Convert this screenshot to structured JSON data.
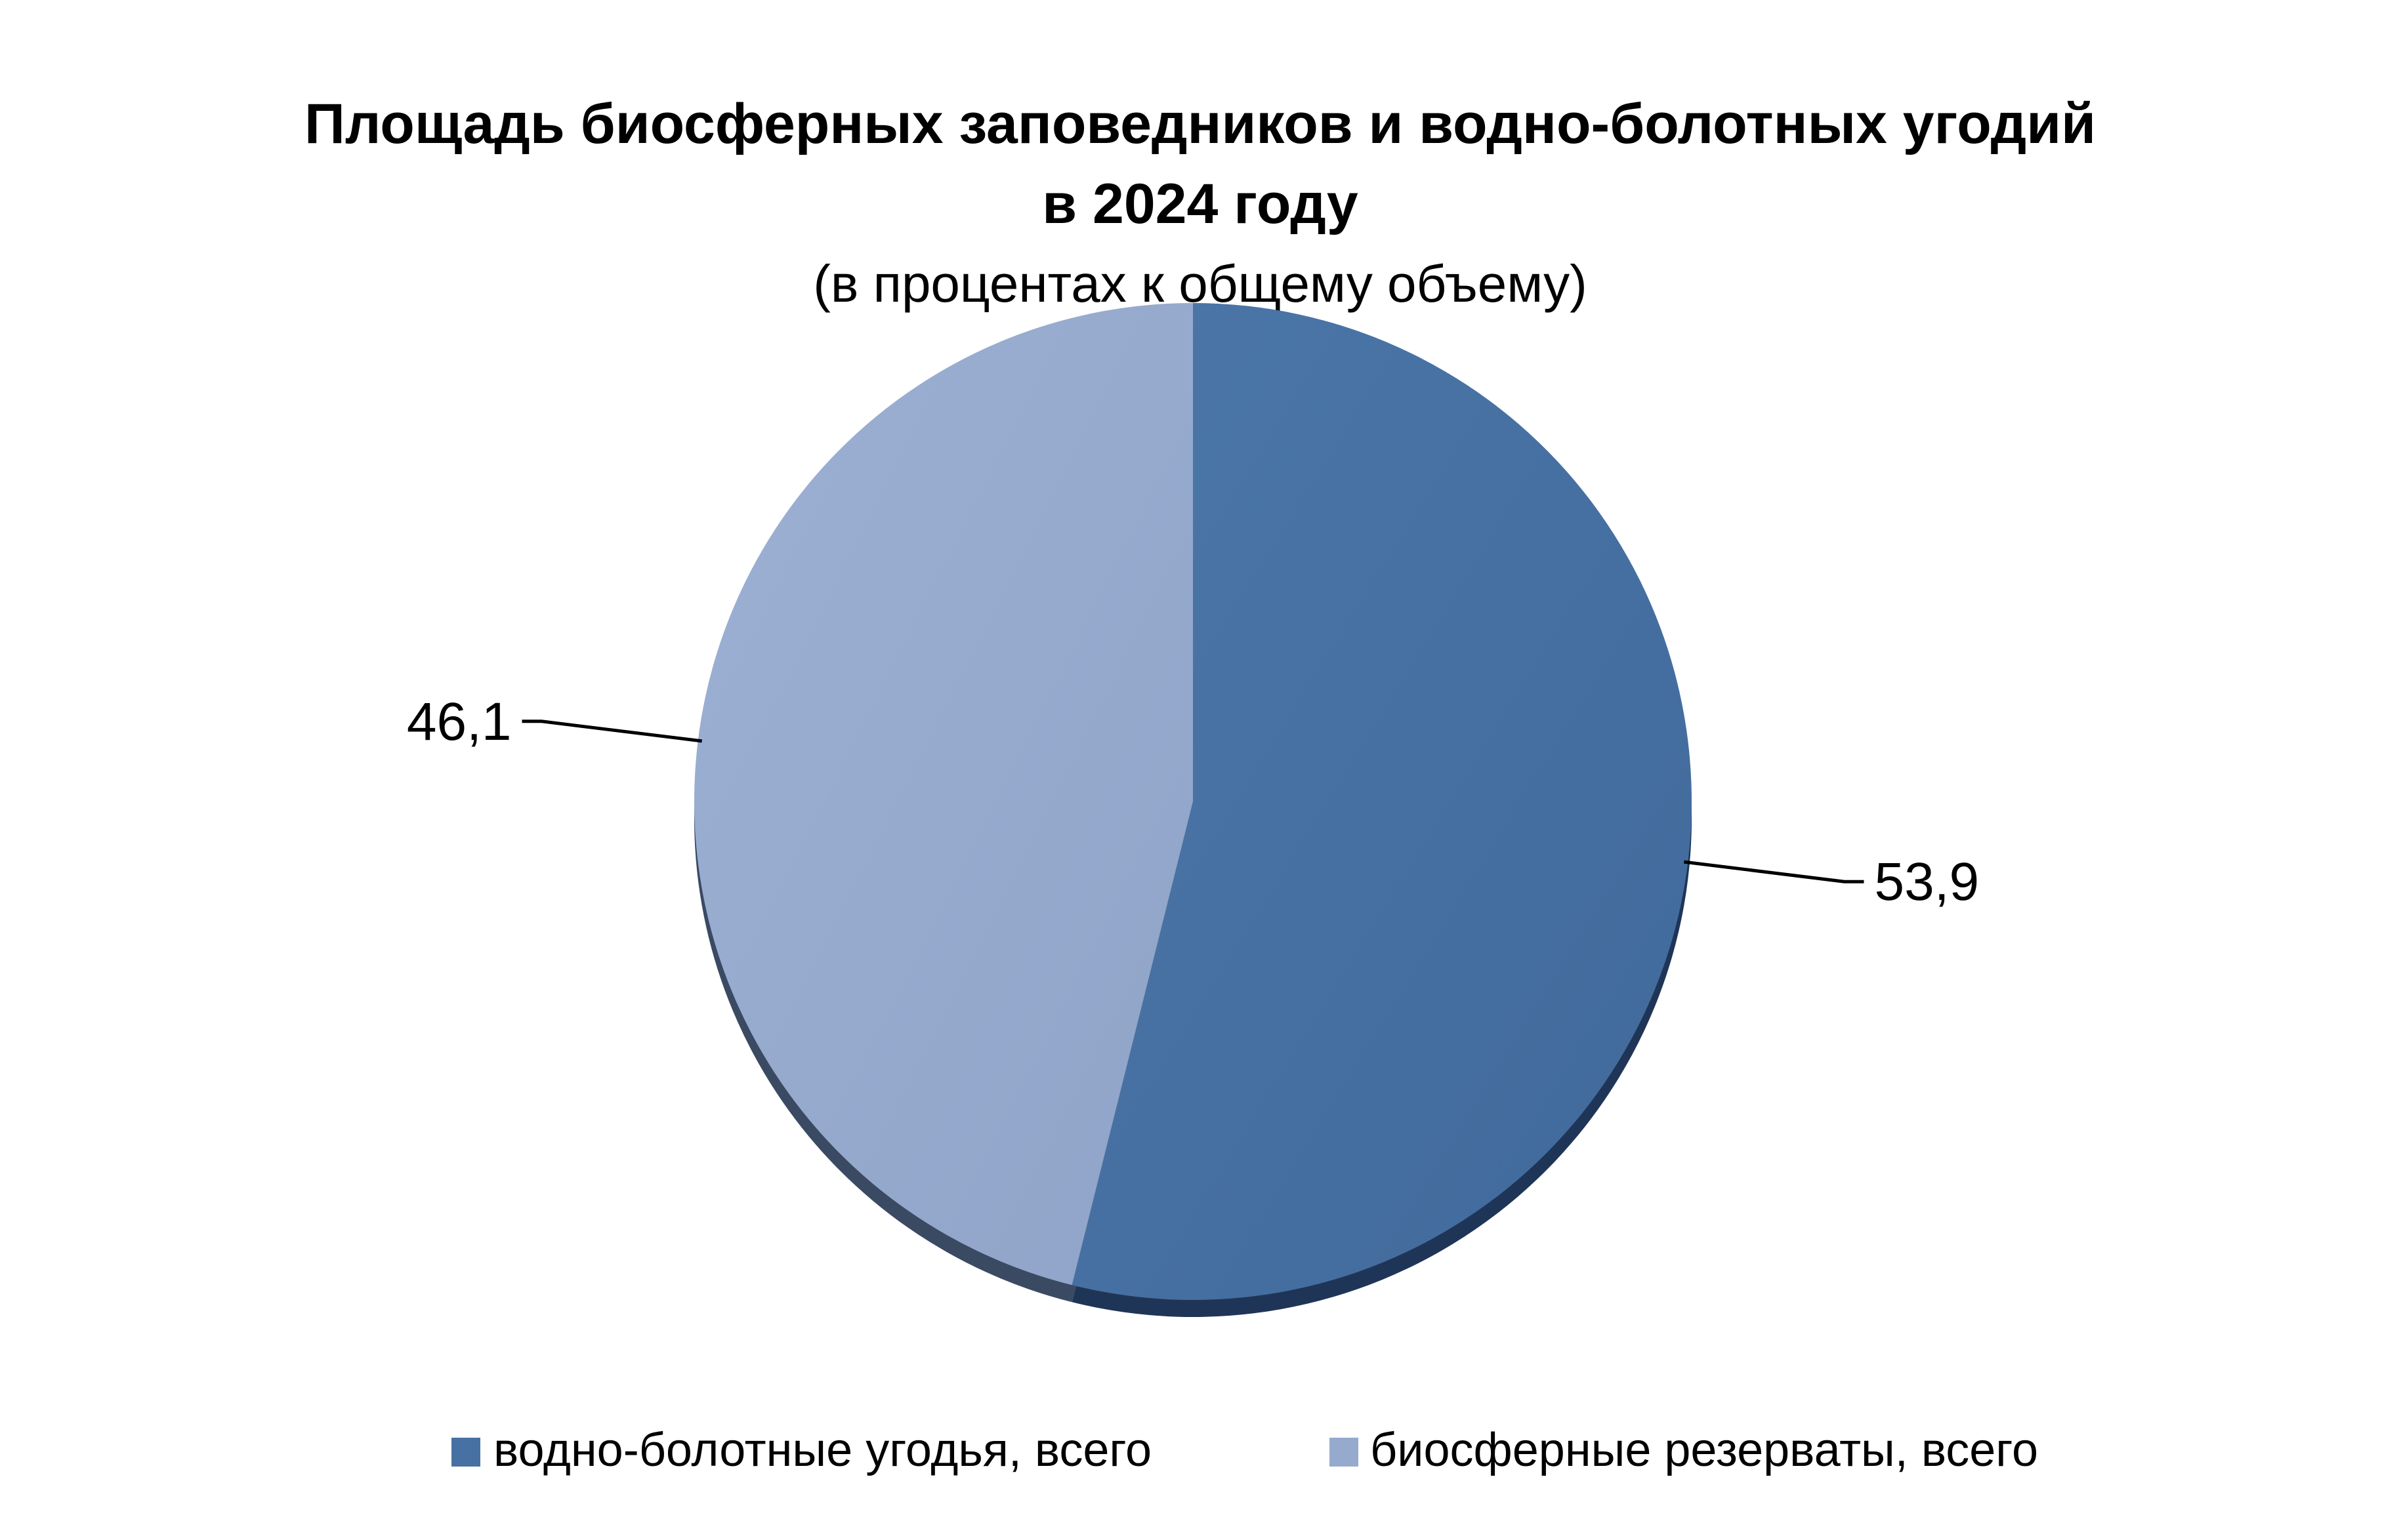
{
  "chart_data": {
    "type": "pie",
    "title_lines": [
      "Площадь биосферных заповедников и водно-болотных угодий",
      "в 2024 году"
    ],
    "subtitle": "(в процентах к общему объему)",
    "slices": [
      {
        "name": "водно-болотные угодья, всего",
        "value": 53.9,
        "label": "53,9",
        "color": "#4771A3"
      },
      {
        "name": "биосферные резерваты, всего",
        "value": 46.1,
        "label": "46,1",
        "color": "#96AACE"
      }
    ],
    "legend": {
      "placement": "bottom",
      "items": [
        {
          "label": "водно-болотные угодья, всего",
          "color": "#4771A3"
        },
        {
          "label": "биосферные резерваты, всего",
          "color": "#96AACE"
        }
      ]
    }
  }
}
